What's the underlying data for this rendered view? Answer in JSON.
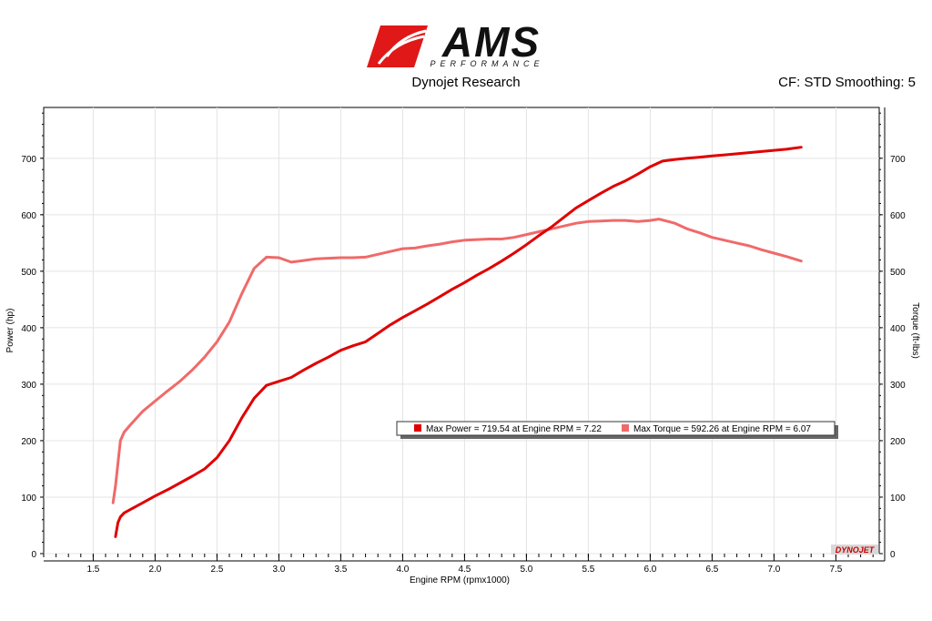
{
  "header": {
    "brand": "AMS",
    "brand_sub": "PERFORMANCE",
    "subtitle": "Dynojet Research",
    "right_info": "CF: STD Smoothing: 5",
    "watermark": "DYNOJET"
  },
  "colors": {
    "power": "#e00000",
    "torque": "#f06a6a",
    "logo_red": "#e01818",
    "logo_dark": "#111111"
  },
  "chart_data": {
    "type": "line",
    "xlabel": "Engine RPM (rpmx1000)",
    "ylabel_left": "Power (hp)",
    "ylabel_right": "Torque (ft-lbs)",
    "xlim": [
      1.1,
      7.85
    ],
    "ylim": [
      0,
      790
    ],
    "x_ticks": [
      "1.5",
      "2.0",
      "2.5",
      "3.0",
      "3.5",
      "4.0",
      "4.5",
      "5.0",
      "5.5",
      "6.0",
      "6.5",
      "7.0",
      "7.5"
    ],
    "y_ticks": [
      "0",
      "100",
      "200",
      "300",
      "400",
      "500",
      "600",
      "700"
    ],
    "legend": {
      "power_text": "Max Power = 719.54 at Engine RPM = 7.22",
      "torque_text": "Max Torque = 592.26 at Engine RPM = 6.07"
    },
    "series": [
      {
        "key": "power",
        "x": [
          1.68,
          1.7,
          1.72,
          1.75,
          1.8,
          1.9,
          2.0,
          2.1,
          2.2,
          2.3,
          2.4,
          2.5,
          2.6,
          2.7,
          2.8,
          2.9,
          3.0,
          3.1,
          3.2,
          3.3,
          3.4,
          3.5,
          3.6,
          3.7,
          3.8,
          3.9,
          4.0,
          4.1,
          4.2,
          4.3,
          4.4,
          4.5,
          4.6,
          4.7,
          4.8,
          4.9,
          5.0,
          5.1,
          5.2,
          5.3,
          5.4,
          5.5,
          5.6,
          5.7,
          5.8,
          5.9,
          6.0,
          6.1,
          6.2,
          6.3,
          6.4,
          6.5,
          6.6,
          6.7,
          6.8,
          6.9,
          7.0,
          7.1,
          7.22
        ],
        "y": [
          30,
          55,
          65,
          72,
          78,
          90,
          102,
          113,
          125,
          137,
          150,
          170,
          200,
          240,
          275,
          298,
          305,
          312,
          325,
          337,
          348,
          360,
          368,
          375,
          390,
          405,
          418,
          430,
          442,
          455,
          468,
          480,
          493,
          505,
          518,
          532,
          547,
          563,
          578,
          595,
          612,
          625,
          638,
          650,
          660,
          672,
          685,
          695,
          698,
          700,
          702,
          704,
          706,
          708,
          710,
          712,
          714,
          716,
          719.54
        ]
      },
      {
        "key": "torque",
        "x": [
          1.66,
          1.68,
          1.7,
          1.72,
          1.75,
          1.8,
          1.9,
          2.0,
          2.1,
          2.2,
          2.3,
          2.4,
          2.5,
          2.6,
          2.7,
          2.8,
          2.9,
          3.0,
          3.1,
          3.2,
          3.3,
          3.4,
          3.5,
          3.6,
          3.7,
          3.8,
          3.9,
          4.0,
          4.1,
          4.2,
          4.3,
          4.4,
          4.5,
          4.6,
          4.7,
          4.8,
          4.9,
          5.0,
          5.1,
          5.2,
          5.3,
          5.4,
          5.5,
          5.6,
          5.7,
          5.8,
          5.9,
          6.0,
          6.07,
          6.2,
          6.3,
          6.4,
          6.5,
          6.6,
          6.7,
          6.8,
          6.9,
          7.0,
          7.1,
          7.22
        ],
        "y": [
          90,
          120,
          160,
          200,
          215,
          228,
          252,
          270,
          288,
          305,
          325,
          348,
          375,
          410,
          460,
          505,
          525,
          524,
          516,
          519,
          522,
          523,
          524,
          524,
          525,
          530,
          535,
          540,
          541,
          545,
          548,
          552,
          555,
          556,
          557,
          557,
          560,
          565,
          570,
          575,
          580,
          585,
          588,
          589,
          590,
          590,
          588,
          590,
          592.26,
          585,
          575,
          568,
          560,
          555,
          550,
          545,
          538,
          532,
          526,
          518
        ]
      }
    ]
  }
}
